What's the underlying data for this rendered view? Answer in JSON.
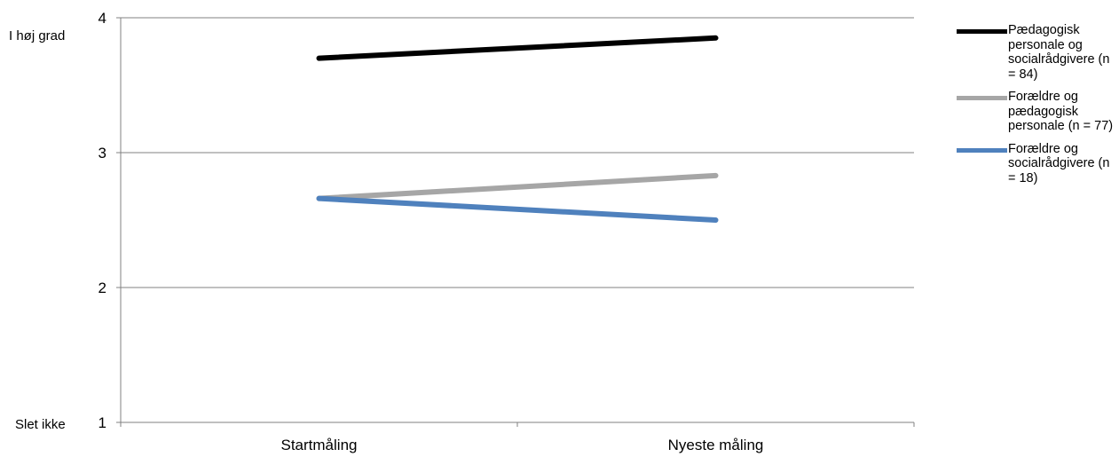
{
  "chart_data": {
    "type": "line",
    "categories": [
      "Startmåling",
      "Nyeste måling"
    ],
    "series": [
      {
        "name": "Pædagogisk personale og socialrådgivere (n = 84)",
        "color": "#000000",
        "values": [
          3.7,
          3.85
        ]
      },
      {
        "name": "Forældre og pædagogisk personale (n = 77)",
        "color": "#A6A6A6",
        "values": [
          2.66,
          2.83
        ]
      },
      {
        "name": "Forældre og socialrådgivere (n = 18)",
        "color": "#4F81BD",
        "values": [
          2.66,
          2.5
        ]
      }
    ],
    "yticks": [
      "1",
      "2",
      "3",
      "4"
    ],
    "ylim": [
      1,
      4
    ],
    "y_top_label": "I høj grad",
    "y_bottom_label": "Slet ikke",
    "grid": true,
    "legend_position": "right"
  }
}
